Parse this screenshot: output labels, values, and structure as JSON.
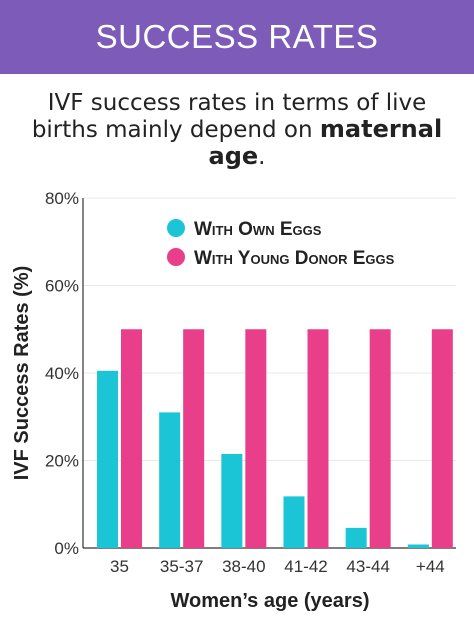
{
  "header": {
    "title": "SUCCESS RATES"
  },
  "subtitle": {
    "text": "IVF success rates in terms of live births mainly depend on",
    "emphasis": "maternal age",
    "suffix": "."
  },
  "colors": {
    "banner": "#7c5cb8",
    "own_eggs": "#1cc5d6",
    "donor_eggs": "#e93f8b",
    "grid": "#e8e8e8",
    "axis": "#333333"
  },
  "chart_data": {
    "type": "bar",
    "categories": [
      "35",
      "35-37",
      "38-40",
      "41-42",
      "43-44",
      "+44"
    ],
    "series": [
      {
        "name": "With Own Eggs",
        "values": [
          40.5,
          31,
          21.5,
          11.8,
          4.6,
          0.8
        ],
        "color": "#1cc5d6"
      },
      {
        "name": "With Young Donor Eggs",
        "values": [
          50,
          50,
          50,
          50,
          50,
          50
        ],
        "color": "#e93f8b"
      }
    ],
    "xlabel": "Women’s age (years)",
    "ylabel": "IVF Success Rates (%)",
    "ylim": [
      0,
      80
    ],
    "yticks": [
      {
        "value": 0,
        "label": "0%"
      },
      {
        "value": 20,
        "label": "20%"
      },
      {
        "value": 40,
        "label": "40%"
      },
      {
        "value": 60,
        "label": "60%"
      },
      {
        "value": 80,
        "label": "80%"
      }
    ],
    "grid": true,
    "legend": "top-center"
  }
}
